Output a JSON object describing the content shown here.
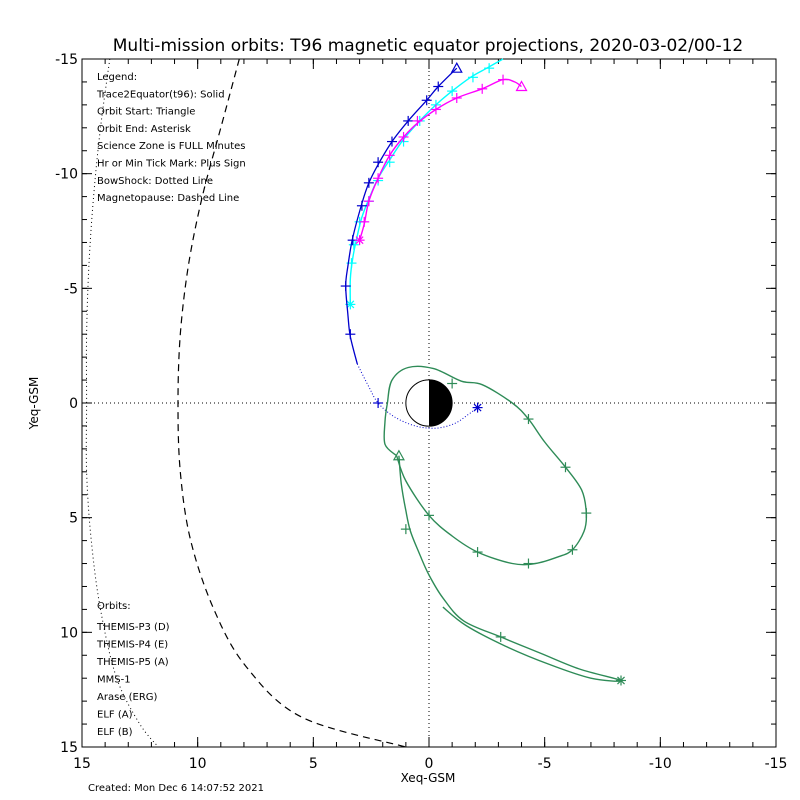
{
  "chart_data": {
    "type": "scatter",
    "title": "Multi-mission orbits: T96 magnetic equator projections, 2020-03-02/00-12",
    "xlabel": "Xeq-GSM",
    "ylabel": "Yeq-GSM",
    "xlim": [
      15,
      -15
    ],
    "ylim": [
      15,
      -15
    ],
    "x_ticks": [
      {
        "value": 15,
        "label": "15"
      },
      {
        "value": 10,
        "label": "10"
      },
      {
        "value": 5,
        "label": "5"
      },
      {
        "value": 0,
        "label": "0"
      },
      {
        "value": -5,
        "label": "-5"
      },
      {
        "value": -10,
        "label": "-10"
      },
      {
        "value": -15,
        "label": "-15"
      }
    ],
    "y_ticks": [
      {
        "value": -15,
        "label": "-15"
      },
      {
        "value": -10,
        "label": "-10"
      },
      {
        "value": -5,
        "label": "-5"
      },
      {
        "value": 0,
        "label": "0"
      },
      {
        "value": 5,
        "label": "5"
      },
      {
        "value": 10,
        "label": "10"
      },
      {
        "value": 15,
        "label": "15"
      }
    ],
    "legend_lines": [
      "Legend:",
      "Trace2Equator(t96): Solid",
      "Orbit Start: Triangle",
      "Orbit End: Asterisk",
      "Science Zone is FULL Minutes",
      "Hr or Min Tick Mark: Plus Sign",
      "BowShock: Dotted Line",
      "Magnetopause: Dashed Line"
    ],
    "orbits_heading": "Orbits:",
    "orbits_legend": [
      {
        "name": "THEMIS-P3 (D)",
        "color": "#00ffff"
      },
      {
        "name": "THEMIS-P4 (E)",
        "color": "#0000cd"
      },
      {
        "name": "THEMIS-P5 (A)",
        "color": "#ff00ff"
      },
      {
        "name": "MMS-1",
        "color": "#000000"
      },
      {
        "name": "Arase (ERG)",
        "color": "#2e8b57"
      },
      {
        "name": "ELF (A)",
        "color": "#1e90ff"
      },
      {
        "name": "ELF (B)",
        "color": "#ff0000"
      }
    ],
    "footer": "Created: Mon Dec  6 14:07:52 2021",
    "bow_shock": [
      [
        13.8,
        -15
      ],
      [
        14.2,
        -12
      ],
      [
        14.5,
        -9
      ],
      [
        14.7,
        -6
      ],
      [
        14.8,
        -3
      ],
      [
        14.8,
        0
      ],
      [
        14.8,
        3
      ],
      [
        14.6,
        6
      ],
      [
        14.2,
        9
      ],
      [
        13.5,
        12
      ],
      [
        12.5,
        14
      ],
      [
        11.7,
        15
      ]
    ],
    "magnetopause": [
      [
        8.2,
        -15
      ],
      [
        9.0,
        -12
      ],
      [
        9.8,
        -9
      ],
      [
        10.4,
        -6
      ],
      [
        10.75,
        -3
      ],
      [
        10.85,
        0
      ],
      [
        10.75,
        3
      ],
      [
        10.3,
        6
      ],
      [
        9.3,
        9
      ],
      [
        7.9,
        11.5
      ],
      [
        5.5,
        13.7
      ],
      [
        1.0,
        15
      ]
    ],
    "series": [
      {
        "name": "THEMIS-P3 (D)",
        "color": "#00ffff",
        "line": [
          [
            3.4,
            -4.3
          ],
          [
            3.4,
            -5.4
          ],
          [
            3.3,
            -6.3
          ],
          [
            3.1,
            -7.3
          ],
          [
            2.9,
            -8.1
          ],
          [
            2.6,
            -8.9
          ],
          [
            2.2,
            -9.8
          ],
          [
            1.7,
            -10.6
          ],
          [
            1.1,
            -11.5
          ],
          [
            0.4,
            -12.3
          ],
          [
            -0.3,
            -13.0
          ],
          [
            -1.0,
            -13.6
          ],
          [
            -1.8,
            -14.2
          ],
          [
            -2.5,
            -14.6
          ],
          [
            -3.2,
            -15.0
          ]
        ],
        "ticks": [
          [
            3.35,
            -6.1
          ],
          [
            3.25,
            -6.9
          ],
          [
            3.0,
            -7.9
          ],
          [
            2.6,
            -8.8
          ],
          [
            2.2,
            -9.7
          ],
          [
            1.7,
            -10.5
          ],
          [
            1.1,
            -11.4
          ],
          [
            0.4,
            -12.3
          ],
          [
            -0.3,
            -13.0
          ],
          [
            -1.0,
            -13.6
          ],
          [
            -1.9,
            -14.2
          ],
          [
            -2.6,
            -14.6
          ]
        ],
        "start": null,
        "end": [
          3.4,
          -4.3
        ]
      },
      {
        "name": "THEMIS-P4 (E)",
        "color": "#0000cd",
        "line": [
          [
            -1.2,
            -14.6
          ],
          [
            -0.4,
            -13.8
          ],
          [
            0.1,
            -13.2
          ],
          [
            0.9,
            -12.3
          ],
          [
            1.6,
            -11.4
          ],
          [
            2.2,
            -10.4
          ],
          [
            2.6,
            -9.6
          ],
          [
            2.9,
            -8.7
          ],
          [
            3.3,
            -7.2
          ],
          [
            3.5,
            -6.0
          ],
          [
            3.6,
            -5.1
          ],
          [
            3.5,
            -3.8
          ],
          [
            3.4,
            -2.9
          ],
          [
            3.1,
            -1.7
          ],
          [
            2.6,
            -0.7
          ],
          [
            2.2,
            0.0
          ],
          [
            1.5,
            0.6
          ],
          [
            0.6,
            1.0
          ],
          [
            -0.3,
            1.1
          ],
          [
            -1.1,
            0.9
          ],
          [
            -1.7,
            0.5
          ],
          [
            -2.1,
            0.2
          ]
        ],
        "line_dotted_from_index": 13,
        "ticks": [
          [
            -0.4,
            -13.8
          ],
          [
            0.1,
            -13.2
          ],
          [
            0.9,
            -12.3
          ],
          [
            1.6,
            -11.4
          ],
          [
            2.2,
            -10.5
          ],
          [
            2.6,
            -9.6
          ],
          [
            2.9,
            -8.6
          ],
          [
            3.3,
            -7.1
          ],
          [
            3.6,
            -5.1
          ],
          [
            3.4,
            -3.0
          ],
          [
            2.2,
            0.0
          ]
        ],
        "start": [
          -1.2,
          -14.6
        ],
        "end": [
          -2.1,
          0.2
        ]
      },
      {
        "name": "THEMIS-P5 (A)",
        "color": "#ff00ff",
        "line": [
          [
            -4.0,
            -13.8
          ],
          [
            -3.7,
            -14.0
          ],
          [
            -3.2,
            -14.1
          ],
          [
            -2.3,
            -13.7
          ],
          [
            -1.2,
            -13.3
          ],
          [
            -0.3,
            -12.8
          ],
          [
            0.5,
            -12.2
          ],
          [
            1.1,
            -11.6
          ],
          [
            1.7,
            -10.8
          ],
          [
            2.2,
            -9.8
          ],
          [
            2.6,
            -8.8
          ],
          [
            2.8,
            -7.8
          ],
          [
            3.0,
            -7.1
          ]
        ],
        "ticks": [
          [
            -3.2,
            -14.1
          ],
          [
            -2.3,
            -13.7
          ],
          [
            -1.2,
            -13.3
          ],
          [
            -0.3,
            -12.8
          ],
          [
            0.5,
            -12.3
          ],
          [
            1.1,
            -11.6
          ],
          [
            1.7,
            -10.8
          ],
          [
            2.2,
            -9.8
          ],
          [
            2.6,
            -8.8
          ],
          [
            2.8,
            -7.9
          ]
        ],
        "start": [
          -4.0,
          -13.8
        ],
        "end": [
          3.0,
          -7.1
        ]
      },
      {
        "name": "Arase (ERG)",
        "color": "#2e8b57",
        "line": [
          [
            1.3,
            2.3
          ],
          [
            1.2,
            3.5
          ],
          [
            1.0,
            4.7
          ],
          [
            0.8,
            5.6
          ],
          [
            0.4,
            6.6
          ],
          [
            0.0,
            7.5
          ],
          [
            -0.6,
            8.5
          ],
          [
            -1.5,
            9.5
          ],
          [
            -3.1,
            10.2
          ],
          [
            -4.8,
            10.9
          ],
          [
            -6.5,
            11.6
          ],
          [
            -8.3,
            12.1
          ],
          [
            -7.0,
            12.0
          ],
          [
            -5.2,
            11.4
          ],
          [
            -3.3,
            10.6
          ],
          [
            -1.6,
            9.7
          ],
          [
            -0.6,
            8.9
          ]
        ],
        "line2": [
          [
            1.4,
            2.3
          ],
          [
            1.0,
            3.4
          ],
          [
            0.0,
            4.9
          ],
          [
            -1.0,
            5.8
          ],
          [
            -2.1,
            6.5
          ],
          [
            -3.6,
            7.0
          ],
          [
            -4.6,
            7.0
          ],
          [
            -5.6,
            6.7
          ],
          [
            -6.2,
            6.4
          ],
          [
            -6.7,
            5.6
          ],
          [
            -6.8,
            4.8
          ],
          [
            -6.6,
            3.8
          ],
          [
            -5.9,
            2.8
          ],
          [
            -5.0,
            1.7
          ],
          [
            -4.3,
            0.7
          ],
          [
            -3.6,
            0.0
          ],
          [
            -2.3,
            -0.8
          ],
          [
            -1.4,
            -0.95
          ],
          [
            -0.2,
            -1.5
          ],
          [
            0.9,
            -1.55
          ],
          [
            1.6,
            -1.0
          ],
          [
            1.8,
            0.0
          ],
          [
            1.9,
            0.8
          ],
          [
            1.9,
            1.8
          ],
          [
            1.4,
            2.3
          ]
        ],
        "ticks": [
          [
            1.0,
            5.5
          ],
          [
            0.0,
            4.9
          ],
          [
            -2.1,
            6.5
          ],
          [
            -4.3,
            7.0
          ],
          [
            -6.2,
            6.4
          ],
          [
            -6.8,
            4.8
          ],
          [
            -5.9,
            2.8
          ],
          [
            -4.3,
            0.7
          ],
          [
            -1.0,
            -0.85
          ],
          [
            -3.1,
            10.2
          ]
        ],
        "start": [
          1.3,
          2.3
        ],
        "end": [
          -8.3,
          12.1
        ]
      }
    ],
    "earth": {
      "radius": 1.0
    }
  }
}
